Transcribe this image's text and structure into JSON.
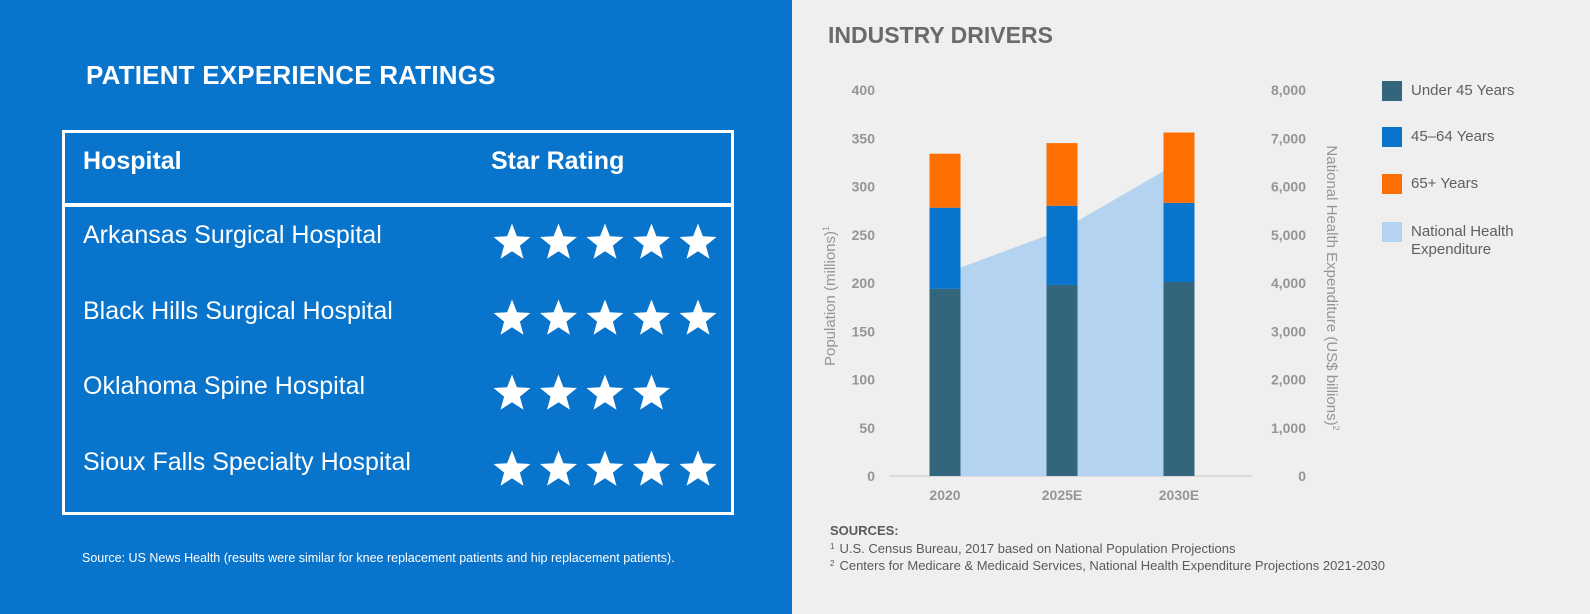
{
  "left": {
    "title": "PATIENT EXPERIENCE RATINGS",
    "table": {
      "header_hospital": "Hospital",
      "header_rating": "Star Rating",
      "rows": [
        {
          "hospital": "Arkansas Surgical Hospital",
          "stars": 5
        },
        {
          "hospital": "Black Hills Surgical Hospital",
          "stars": 5
        },
        {
          "hospital": "Oklahoma Spine Hospital",
          "stars": 4
        },
        {
          "hospital": "Sioux Falls Specialty Hospital",
          "stars": 5
        }
      ]
    },
    "source": "Source: US News Health (results were similar for knee replacement patients and hip replacement patients)."
  },
  "right": {
    "title": "INDUSTRY DRIVERS",
    "sources_title": "SOURCES:",
    "sources": [
      {
        "num": "1",
        "text": "U.S. Census Bureau, 2017 based on National Population Projections"
      },
      {
        "num": "2",
        "text": "Centers for Medicare & Medicaid Services, National Health Expenditure Projections  2021-2030"
      }
    ]
  },
  "colors": {
    "left_background": "#0874cb",
    "under45": "#33657d",
    "age45_64": "#0874cb",
    "age65plus": "#ff6e00",
    "health_expenditure": "#b3d3f0"
  },
  "chart_data": {
    "type": "bar",
    "stacked": true,
    "categories": [
      "2020",
      "2025E",
      "2030E"
    ],
    "series": [
      {
        "name": "Under 45 Years",
        "values": [
          194,
          198,
          201
        ]
      },
      {
        "name": "45–64 Years",
        "values": [
          84,
          82,
          82
        ]
      },
      {
        "name": "65+ Years",
        "values": [
          56,
          65,
          73
        ]
      }
    ],
    "area_series": {
      "name": "National Health Expenditure",
      "axis": "right",
      "values": [
        4200,
        5100,
        6500
      ]
    },
    "y_ticks": [
      "0",
      "50",
      "100",
      "150",
      "200",
      "250",
      "300",
      "350",
      "400"
    ],
    "y2_ticks": [
      "0",
      "1,000",
      "2,000",
      "3,000",
      "4,000",
      "5,000",
      "6,000",
      "7,000",
      "8,000"
    ],
    "ylim": [
      0,
      400
    ],
    "y2lim": [
      0,
      8000
    ],
    "ylabel": "Population (millions)",
    "ylabel_sup": "1",
    "y2label": "National Health Expenditure (US$ billions)",
    "y2label_sup": "2",
    "legend_position": "right",
    "legend": [
      {
        "label": "Under 45 Years",
        "color_key": "under45"
      },
      {
        "label": "45–64 Years",
        "color_key": "age45_64"
      },
      {
        "label": "65+ Years",
        "color_key": "age65plus"
      },
      {
        "label": "National Health",
        "label2": "Expenditure",
        "color_key": "health_expenditure"
      }
    ]
  }
}
